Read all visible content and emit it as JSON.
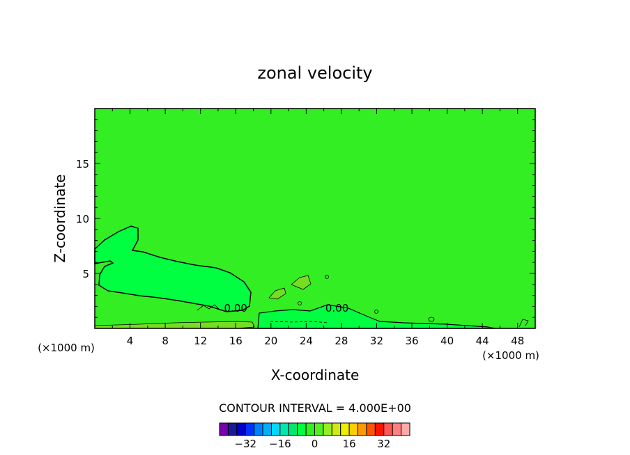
{
  "chart_data": {
    "type": "contour",
    "title": "zonal velocity",
    "xlabel": "X-coordinate",
    "ylabel": "Z-coordinate",
    "x_unit_left": "(×1000 m)",
    "x_unit_right": "(×1000 m)",
    "xlim": [
      0,
      50
    ],
    "ylim": [
      0,
      20
    ],
    "x_ticks": [
      4,
      8,
      12,
      16,
      20,
      24,
      28,
      32,
      36,
      40,
      44,
      48
    ],
    "y_ticks": [
      5,
      10,
      15
    ],
    "contour_labels": [
      {
        "text": "0.00",
        "x": 16,
        "z": 1.9
      },
      {
        "text": "0.00",
        "x": 27.5,
        "z": 1.9
      }
    ],
    "regions": [
      {
        "level": "-4 to 0",
        "color": "#00ff40"
      },
      {
        "level": "0 to 4",
        "color": "#33ee22"
      },
      {
        "level": "4 to 8",
        "color": "#77dd22"
      }
    ],
    "background_color": "#33ee22",
    "contour_interval_text": "CONTOUR INTERVAL = 4.000E+00",
    "colorbar": {
      "colors": [
        "#7700aa",
        "#1a1a99",
        "#0000cc",
        "#0033ff",
        "#0080ff",
        "#00b0ff",
        "#00d8ff",
        "#00e8b0",
        "#00e870",
        "#00ff40",
        "#33ee22",
        "#55ee22",
        "#99ee22",
        "#cceb11",
        "#eeee00",
        "#ffcc00",
        "#ff9900",
        "#ff5500",
        "#ff1100",
        "#ff5555",
        "#ff8080",
        "#ffaaaa"
      ],
      "labels": [
        "-32",
        "-16",
        "0",
        "16",
        "32"
      ],
      "label_values": [
        -32,
        -16,
        0,
        16,
        32
      ],
      "min": -44,
      "max": 44
    }
  }
}
